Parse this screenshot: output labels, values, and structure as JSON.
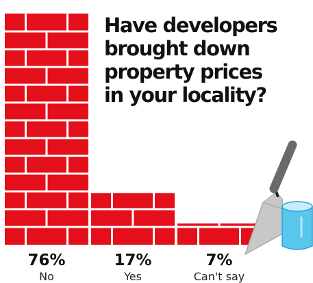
{
  "chart_data": {
    "type": "bar",
    "title_lines": [
      "Have developers",
      "brought down",
      "property prices",
      "in your locality?"
    ],
    "categories": [
      "No",
      "Yes",
      "Can't say"
    ],
    "values": [
      76,
      17,
      7
    ],
    "value_labels": [
      "76%",
      "17%",
      "7%"
    ],
    "ylim": [
      0,
      100
    ],
    "xlabel": "",
    "ylabel": "",
    "grid": false,
    "legend": "none",
    "colors": {
      "bar": "#e3101b",
      "mortar": "#ffffff",
      "trowel_blade": "#c8c8c8",
      "trowel_handle": "#6a6a6a",
      "bucket": "#59c6ee"
    }
  }
}
